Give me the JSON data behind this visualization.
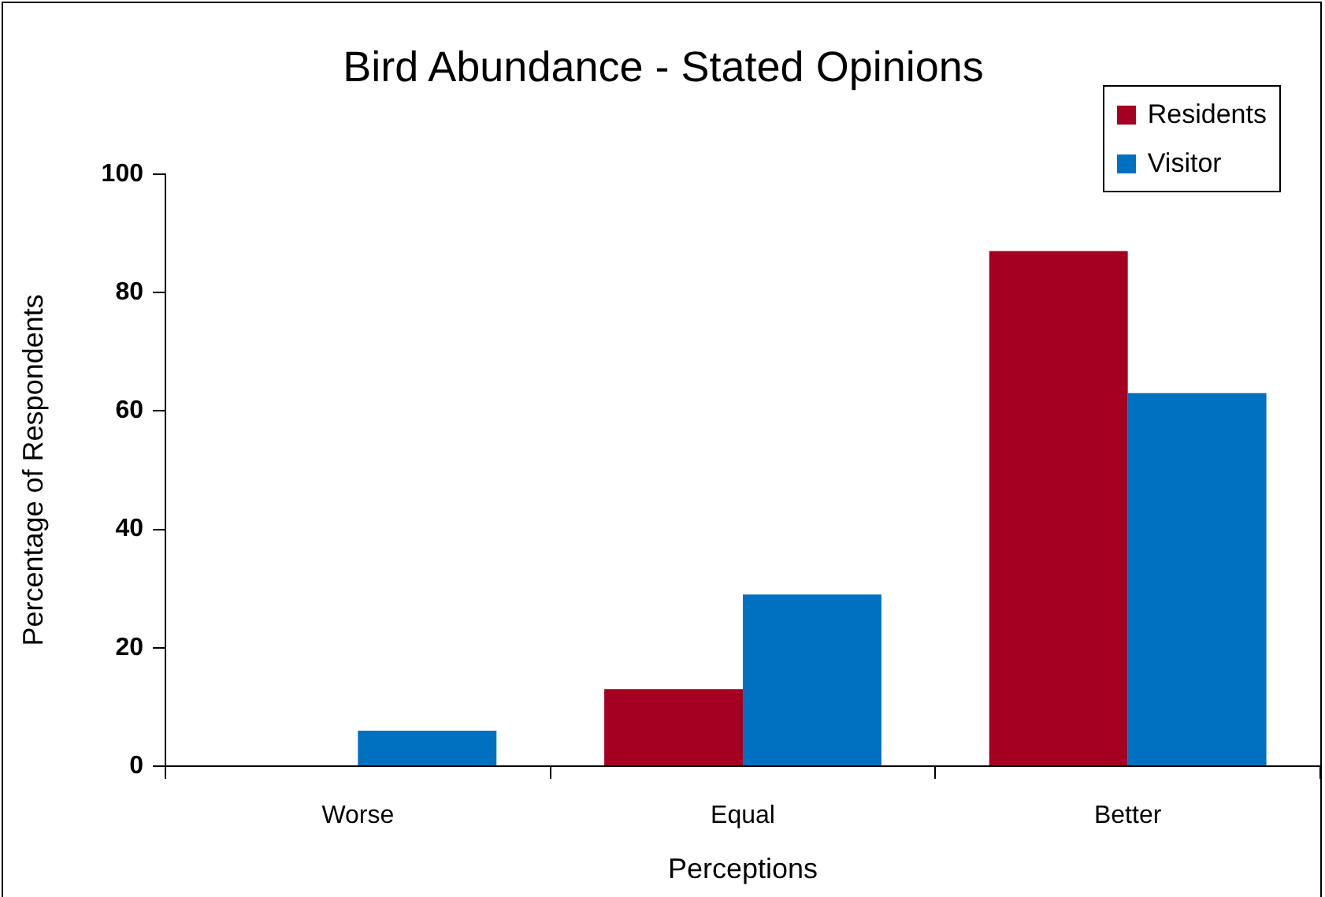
{
  "chart_data": {
    "type": "bar",
    "title": "Bird Abundance - Stated Opinions",
    "xlabel": "Perceptions",
    "ylabel": "Percentage of Respondents",
    "categories": [
      "Worse",
      "Equal",
      "Better"
    ],
    "series": [
      {
        "name": "Residents",
        "color": "#a50021",
        "values": [
          0,
          13,
          87
        ]
      },
      {
        "name": "Visitor",
        "color": "#0070c0",
        "values": [
          6,
          29,
          63
        ]
      }
    ],
    "ylim": [
      0,
      100
    ],
    "yticks": [
      0,
      20,
      40,
      60,
      80,
      100
    ],
    "grid": false,
    "legend": "top right"
  }
}
